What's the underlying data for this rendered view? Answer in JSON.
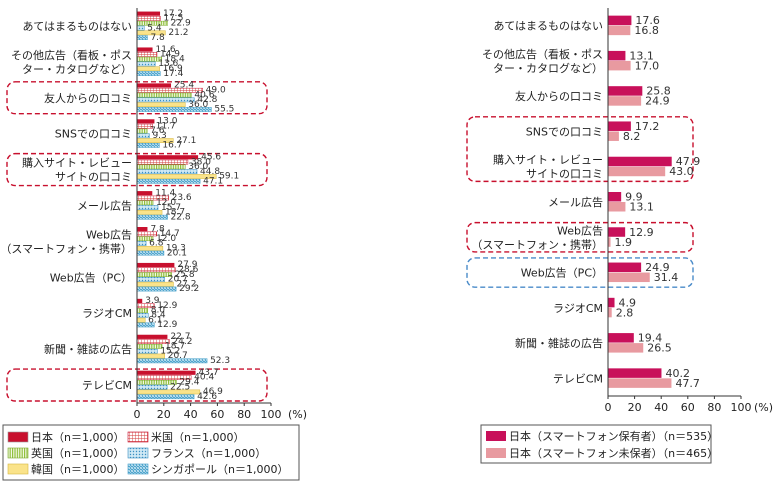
{
  "charts": {
    "left": {
      "categories": [
        [
          "あてはまるものはない"
        ],
        [
          "その他広告（看板・ポス",
          "ター・カタログなど）"
        ],
        [
          "友人からの口コミ"
        ],
        [
          "SNSでの口コミ"
        ],
        [
          "購入サイト・レビュー",
          "サイトの口コミ"
        ],
        [
          "メール広告"
        ],
        [
          "Web広告",
          "（スマートフォン・携帯）"
        ],
        [
          "Web広告（PC）"
        ],
        [
          "ラジオCM"
        ],
        [
          "新聞・雑誌の広告"
        ],
        [
          "テレビCM"
        ]
      ],
      "series": [
        {
          "name": "日本（n＝1,000）",
          "color": "#c8102e",
          "pattern": "solid",
          "values": [
            "17.2",
            "11.6",
            "25.4",
            "13.0",
            "45.6",
            "11.4",
            "7.8",
            "27.9",
            "3.9",
            "22.7",
            "43.7"
          ]
        },
        {
          "name": "米国（n＝1,000）",
          "color": "#e8a0a0",
          "pattern": "grid",
          "values": [
            "17.5",
            "14.9",
            "49.0",
            "11.7",
            "38.0",
            "23.6",
            "14.7",
            "28.6",
            "12.9",
            "24.2",
            "40.4"
          ]
        },
        {
          "name": "英国（n＝1,000）",
          "color": "#b5d96c",
          "pattern": "vlines",
          "values": [
            "22.9",
            "18.4",
            "40.6",
            "7.6",
            "36.0",
            "12.0",
            "12.0",
            "25.8",
            "8.0",
            "18.7",
            "29.4"
          ]
        },
        {
          "name": "フランス（n＝1,000）",
          "color": "#9bd1e8",
          "pattern": "dots",
          "values": [
            "5.4",
            "13.6",
            "42.8",
            "9.3",
            "44.8",
            "15.7",
            "6.8",
            "20.7",
            "8.4",
            "15.2",
            "22.5"
          ]
        },
        {
          "name": "韓国（n＝1,000）",
          "color": "#fae38a",
          "pattern": "solid",
          "values": [
            "21.2",
            "16.9",
            "36.0",
            "27.1",
            "59.1",
            "18.7",
            "19.3",
            "27.2",
            "6.1",
            "20.7",
            "46.9"
          ]
        },
        {
          "name": "シンガポール（n＝1,000）",
          "color": "#8ecae6",
          "pattern": "diag",
          "values": [
            "7.8",
            "17.4",
            "55.5",
            "16.7",
            "47.1",
            "22.8",
            "20.1",
            "29.2",
            "12.9",
            "52.3",
            "42.6"
          ]
        }
      ],
      "highlight": [
        2,
        4,
        10
      ],
      "xlim": [
        0,
        100
      ],
      "ticks": [
        "0",
        "20",
        "40",
        "60",
        "80",
        "100"
      ],
      "unit": "(%)"
    },
    "right": {
      "categories": [
        [
          "あてはまるものはない"
        ],
        [
          "その他広告（看板・ポス",
          "ター・カタログなど）"
        ],
        [
          "友人からの口コミ"
        ],
        [
          "SNSでの口コミ"
        ],
        [
          "購入サイト・レビュー",
          "サイトの口コミ"
        ],
        [
          "メール広告"
        ],
        [
          "Web広告",
          "（スマートフォン・携帯）"
        ],
        [
          "Web広告（PC）"
        ],
        [
          "ラジオCM"
        ],
        [
          "新聞・雑誌の広告"
        ],
        [
          "テレビCM"
        ]
      ],
      "series": [
        {
          "name": "日本（スマートフォン保有者）（n＝535）",
          "color": "#c8105a",
          "values": [
            "17.6",
            "13.1",
            "25.8",
            "17.2",
            "47.9",
            "9.9",
            "12.9",
            "24.9",
            "4.9",
            "19.4",
            "40.2"
          ]
        },
        {
          "name": "日本（スマートフォン未保者）（n＝465）",
          "color": "#e89aa0",
          "values": [
            "16.8",
            "17.0",
            "24.9",
            "8.2",
            "43.0",
            "13.1",
            "1.9",
            "31.4",
            "2.8",
            "26.5",
            "47.7"
          ]
        }
      ],
      "highlight_red": [
        3,
        4,
        6
      ],
      "highlight_blue": [
        7
      ],
      "xlim": [
        0,
        100
      ],
      "ticks": [
        "0",
        "20",
        "40",
        "60",
        "80",
        "100"
      ],
      "unit": "(%)"
    }
  }
}
